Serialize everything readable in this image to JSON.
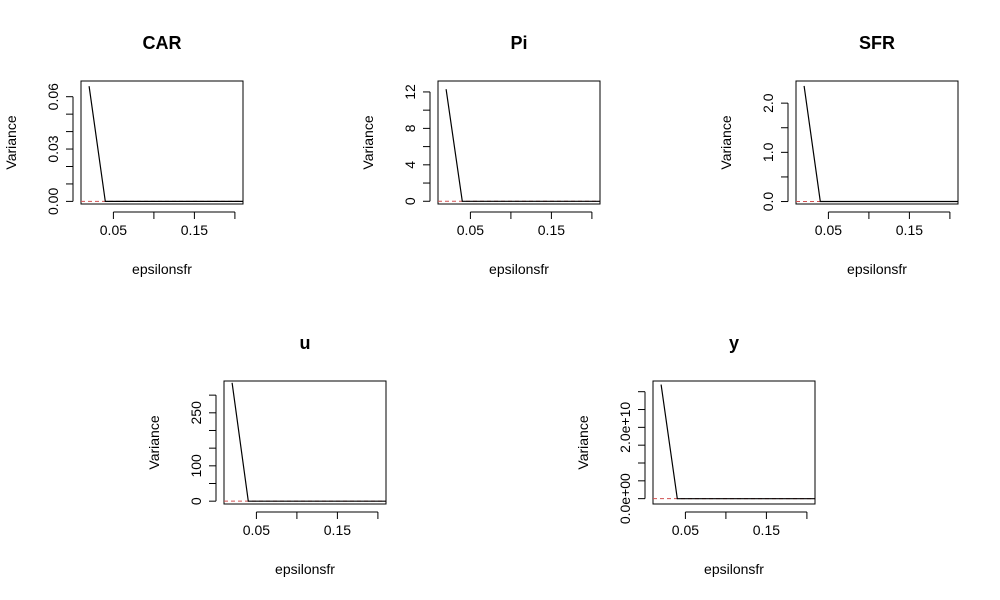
{
  "chart_data": [
    {
      "type": "line",
      "title": "CAR",
      "xlabel": "epsilonsfr",
      "ylabel": "Variance",
      "xlim": [
        0.01,
        0.21
      ],
      "ylim": [
        -0.0015,
        0.069
      ],
      "x_ticks": [
        0.05,
        0.1,
        0.15,
        0.2
      ],
      "x_tick_labels": [
        "0.05",
        "",
        "0.15",
        ""
      ],
      "y_ticks": [
        0.0,
        0.01,
        0.02,
        0.03,
        0.04,
        0.05,
        0.06
      ],
      "y_tick_labels": [
        "0.00",
        "",
        "",
        "0.03",
        "",
        "",
        "0.06"
      ],
      "reference_line": {
        "y": 0,
        "color": "#d05050",
        "style": "dashed"
      },
      "series": [
        {
          "x": [
            0.02,
            0.04,
            0.06,
            0.08,
            0.1,
            0.12,
            0.14,
            0.16,
            0.18,
            0.2,
            0.21
          ],
          "values": [
            0.066,
            0,
            0,
            0,
            0,
            0,
            0,
            0,
            0,
            0,
            0
          ],
          "color": "#000000"
        }
      ]
    },
    {
      "type": "line",
      "title": "Pi",
      "xlabel": "epsilonsfr",
      "ylabel": "Variance",
      "xlim": [
        0.01,
        0.21
      ],
      "ylim": [
        -0.3,
        13.2
      ],
      "x_ticks": [
        0.05,
        0.1,
        0.15,
        0.2
      ],
      "x_tick_labels": [
        "0.05",
        "",
        "0.15",
        ""
      ],
      "y_ticks": [
        0,
        2,
        4,
        6,
        8,
        10,
        12
      ],
      "y_tick_labels": [
        "0",
        "",
        "4",
        "",
        "8",
        "",
        "12"
      ],
      "reference_line": {
        "y": 0,
        "color": "#d05050",
        "style": "dashed"
      },
      "series": [
        {
          "x": [
            0.02,
            0.04,
            0.06,
            0.08,
            0.1,
            0.12,
            0.14,
            0.16,
            0.18,
            0.2,
            0.21
          ],
          "values": [
            12.3,
            0,
            0,
            0,
            0,
            0,
            0,
            0,
            0,
            0,
            0
          ],
          "color": "#000000"
        }
      ]
    },
    {
      "type": "line",
      "title": "SFR",
      "xlabel": "epsilonsfr",
      "ylabel": "Variance",
      "xlim": [
        0.01,
        0.21
      ],
      "ylim": [
        -0.05,
        2.45
      ],
      "x_ticks": [
        0.05,
        0.1,
        0.15,
        0.2
      ],
      "x_tick_labels": [
        "0.05",
        "",
        "0.15",
        ""
      ],
      "y_ticks": [
        0.0,
        0.5,
        1.0,
        1.5,
        2.0
      ],
      "y_tick_labels": [
        "0.0",
        "",
        "1.0",
        "",
        "2.0"
      ],
      "reference_line": {
        "y": 0,
        "color": "#d05050",
        "style": "dashed"
      },
      "series": [
        {
          "x": [
            0.02,
            0.04,
            0.06,
            0.08,
            0.1,
            0.12,
            0.14,
            0.16,
            0.18,
            0.2,
            0.21
          ],
          "values": [
            2.35,
            0,
            0,
            0,
            0,
            0,
            0,
            0,
            0,
            0,
            0
          ],
          "color": "#000000"
        }
      ]
    },
    {
      "type": "line",
      "title": "u",
      "xlabel": "epsilonsfr",
      "ylabel": "Variance",
      "xlim": [
        0.01,
        0.21
      ],
      "ylim": [
        -8,
        340
      ],
      "x_ticks": [
        0.05,
        0.1,
        0.15,
        0.2
      ],
      "x_tick_labels": [
        "0.05",
        "",
        "0.15",
        ""
      ],
      "y_ticks": [
        0,
        50,
        100,
        150,
        200,
        250,
        300
      ],
      "y_tick_labels": [
        "0",
        "",
        "100",
        "",
        "",
        "250",
        ""
      ],
      "reference_line": {
        "y": 0,
        "color": "#d05050",
        "style": "dashed"
      },
      "series": [
        {
          "x": [
            0.02,
            0.04,
            0.06,
            0.08,
            0.1,
            0.12,
            0.14,
            0.16,
            0.18,
            0.2,
            0.21
          ],
          "values": [
            335,
            0,
            0,
            0,
            0,
            0,
            0,
            0,
            0,
            0,
            0
          ],
          "color": "#000000"
        }
      ]
    },
    {
      "type": "line",
      "title": "y",
      "xlabel": "epsilonsfr",
      "ylabel": "Variance",
      "xlim": [
        0.01,
        0.21
      ],
      "ylim": [
        -1500000000.0,
        33000000000.0
      ],
      "x_ticks": [
        0.05,
        0.1,
        0.15,
        0.2
      ],
      "x_tick_labels": [
        "0.05",
        "",
        "0.15",
        ""
      ],
      "y_ticks": [
        0,
        5000000000.0,
        10000000000.0,
        15000000000.0,
        20000000000.0,
        25000000000.0,
        30000000000.0
      ],
      "y_tick_labels": [
        "0.0e+00",
        "",
        "",
        "",
        "2.0e+10",
        "",
        ""
      ],
      "reference_line": {
        "y": 0,
        "color": "#d05050",
        "style": "dashed"
      },
      "series": [
        {
          "x": [
            0.02,
            0.04,
            0.06,
            0.08,
            0.1,
            0.12,
            0.14,
            0.16,
            0.18,
            0.2,
            0.21
          ],
          "values": [
            32000000000.0,
            0,
            0,
            0,
            0,
            0,
            0,
            0,
            0,
            0,
            0
          ],
          "color": "#000000"
        }
      ]
    }
  ]
}
